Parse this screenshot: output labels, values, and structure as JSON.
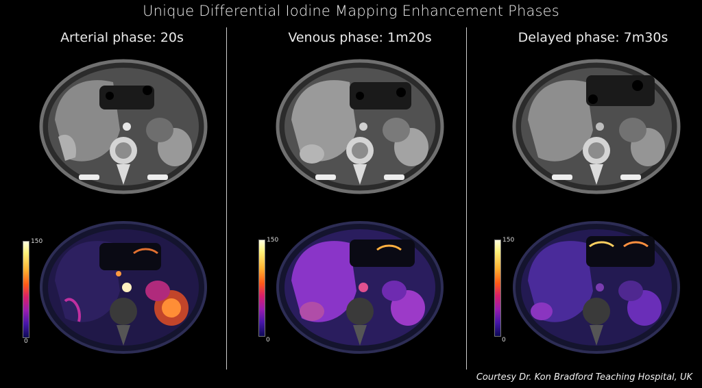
{
  "title": "Unique Differential Iodine Mapping Enhancement Phases",
  "phases": [
    {
      "label": "Arterial phase: 20s"
    },
    {
      "label": "Venous phase: 1m20s"
    },
    {
      "label": "Delayed phase: 7m30s"
    }
  ],
  "scale": {
    "max": "150",
    "min": "0"
  },
  "credit": "Courtesy Dr. Kon Bradford Teaching Hospital, UK"
}
